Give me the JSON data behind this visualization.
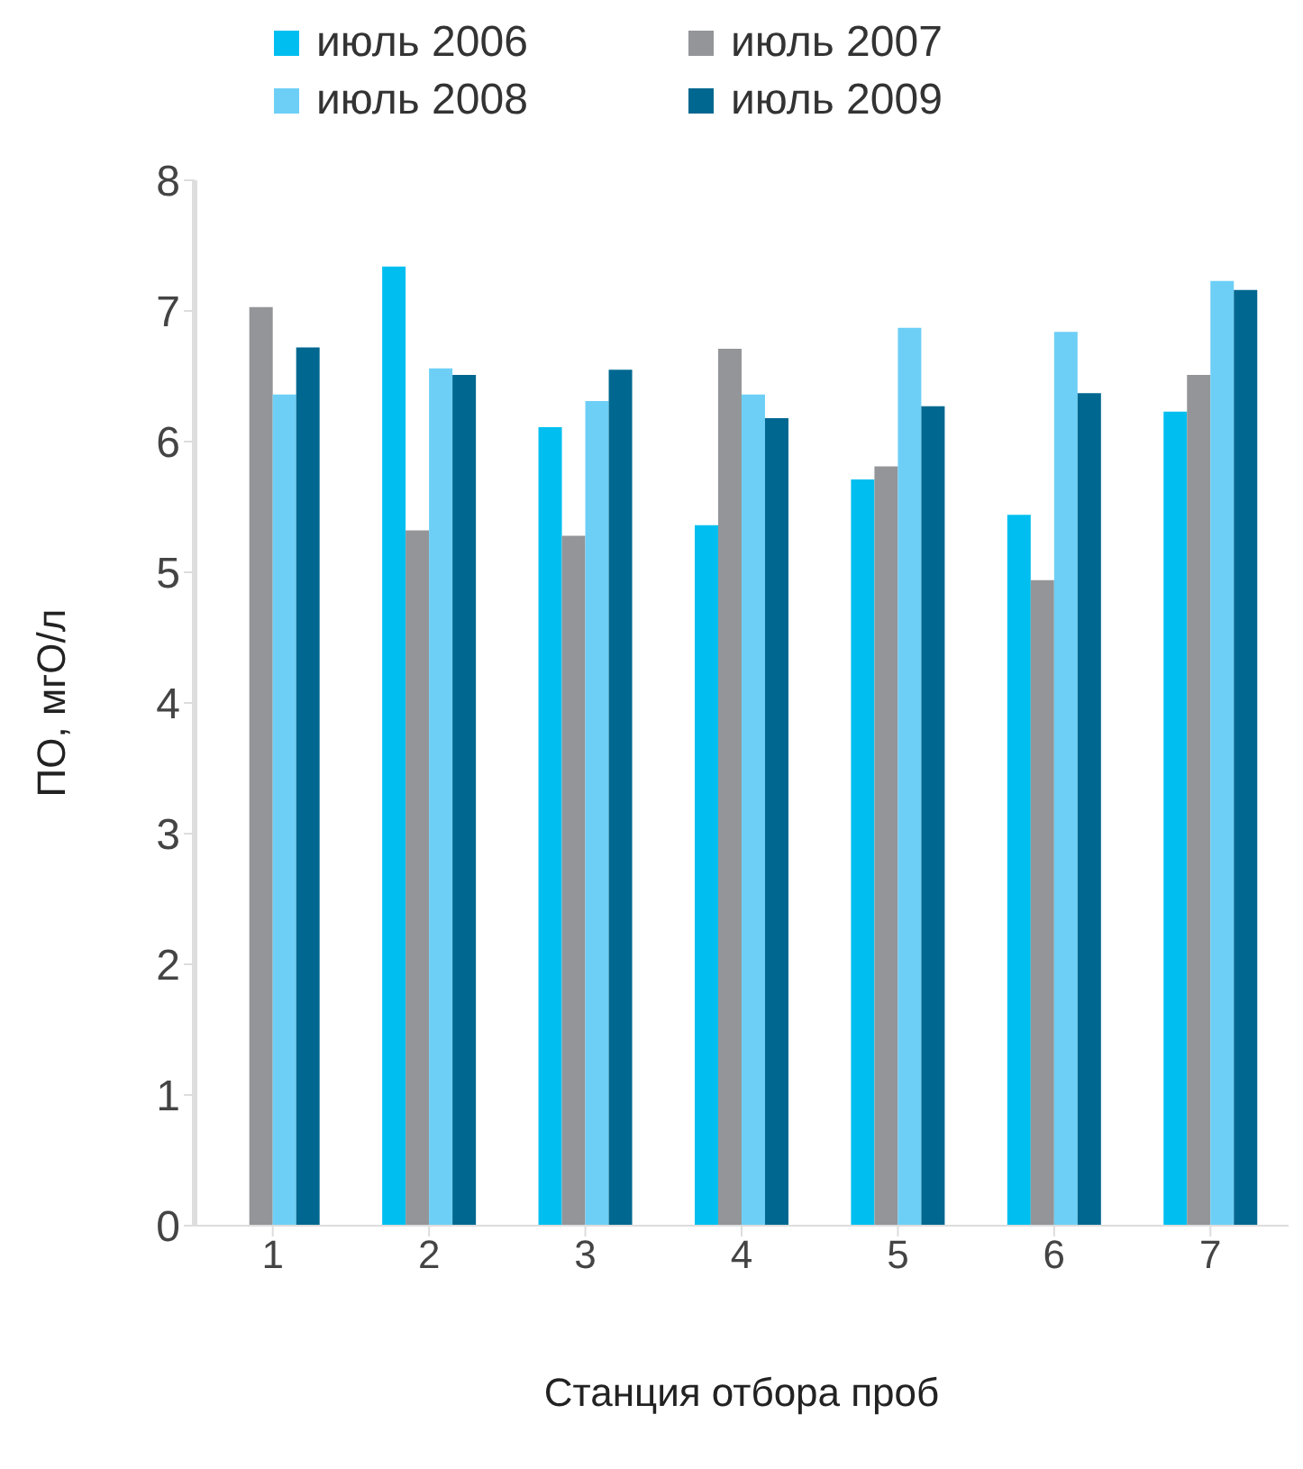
{
  "chart_data": {
    "type": "bar",
    "xlabel": "Станция отбора проб",
    "ylabel": "ПО, мгО/л",
    "categories": [
      "1",
      "2",
      "3",
      "4",
      "5",
      "6",
      "7"
    ],
    "series": [
      {
        "name": "июль 2006",
        "color": "#00bff0",
        "values": [
          null,
          7.34,
          6.11,
          5.36,
          5.71,
          5.44,
          6.23
        ]
      },
      {
        "name": "июль 2007",
        "color": "#939598",
        "values": [
          7.03,
          5.32,
          5.28,
          6.71,
          5.81,
          4.94,
          6.51
        ]
      },
      {
        "name": "июль 2008",
        "color": "#6dcff6",
        "values": [
          6.36,
          6.56,
          6.31,
          6.36,
          6.87,
          6.84,
          7.23
        ]
      },
      {
        "name": "июль 2009",
        "color": "#006890",
        "values": [
          6.72,
          6.51,
          6.55,
          6.18,
          6.27,
          6.37,
          7.16
        ]
      }
    ],
    "ylim": [
      0,
      8
    ],
    "yticks": [
      0,
      1,
      2,
      3,
      4,
      5,
      6,
      7,
      8
    ],
    "grid": false,
    "legend": "top"
  }
}
